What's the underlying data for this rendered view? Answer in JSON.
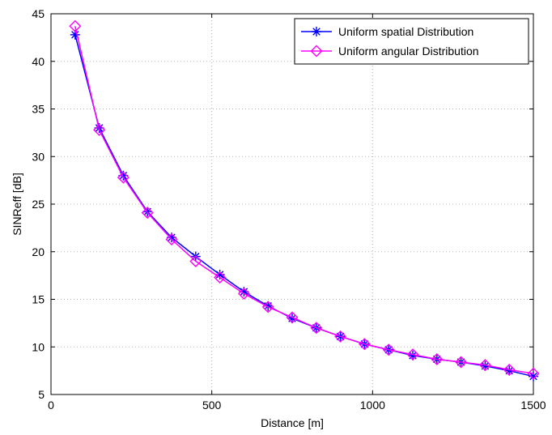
{
  "chart_data": {
    "type": "line",
    "title": "",
    "xlabel": "Distance [m]",
    "ylabel": "SINReff [dB]",
    "xlim": [
      0,
      1500
    ],
    "ylim": [
      5,
      45
    ],
    "xticks": [
      0,
      500,
      1000,
      1500
    ],
    "yticks": [
      5,
      10,
      15,
      20,
      25,
      30,
      35,
      40,
      45
    ],
    "grid": true,
    "legend_position": "top-right",
    "series": [
      {
        "name": "Uniform spatial Distribution",
        "color": "#0000ff",
        "marker": "asterisk",
        "x": [
          75,
          150,
          225,
          300,
          375,
          450,
          525,
          600,
          675,
          750,
          825,
          900,
          975,
          1050,
          1125,
          1200,
          1275,
          1350,
          1425,
          1500
        ],
        "y": [
          42.8,
          33.0,
          28.0,
          24.2,
          21.5,
          19.5,
          17.6,
          15.8,
          14.3,
          13.0,
          12.0,
          11.1,
          10.3,
          9.7,
          9.1,
          8.7,
          8.4,
          8.0,
          7.5,
          6.9
        ]
      },
      {
        "name": "Uniform angular Distribution",
        "color": "#ff00ff",
        "marker": "diamond",
        "x": [
          75,
          150,
          225,
          300,
          375,
          450,
          525,
          600,
          675,
          750,
          825,
          900,
          975,
          1050,
          1125,
          1200,
          1275,
          1350,
          1425,
          1500
        ],
        "y": [
          43.7,
          32.8,
          27.8,
          24.1,
          21.3,
          19.0,
          17.3,
          15.6,
          14.2,
          13.1,
          12.0,
          11.1,
          10.3,
          9.7,
          9.2,
          8.7,
          8.4,
          8.1,
          7.6,
          7.2
        ]
      }
    ]
  }
}
